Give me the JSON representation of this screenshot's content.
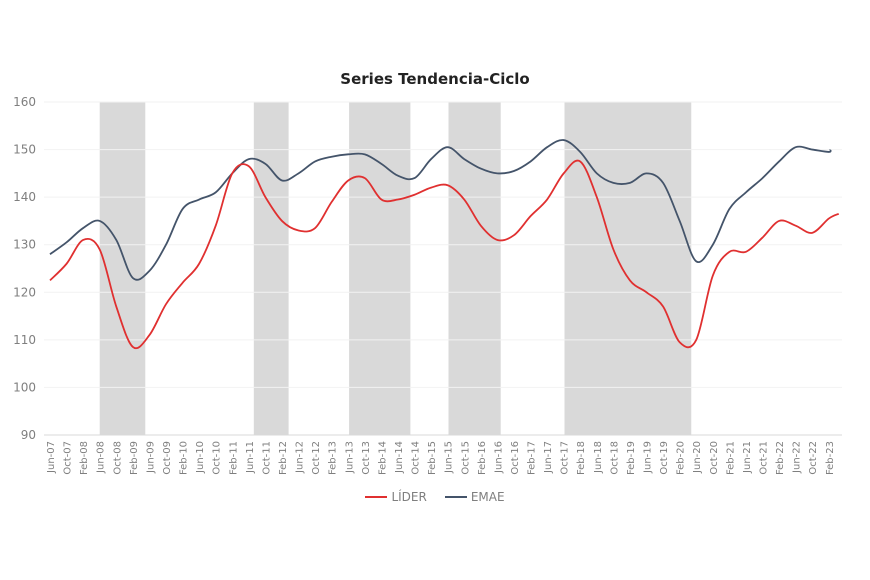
{
  "chart_data": {
    "type": "line",
    "title": "Series Tendencia-Ciclo",
    "xlabel": "",
    "ylabel": "",
    "ylim": [
      90,
      160
    ],
    "yticks": [
      90,
      100,
      110,
      120,
      130,
      140,
      150,
      160
    ],
    "grid": true,
    "legend_position": "bottom",
    "categories": [
      "Jun-07",
      "Oct-07",
      "Feb-08",
      "Jun-08",
      "Oct-08",
      "Feb-09",
      "Jun-09",
      "Oct-09",
      "Feb-10",
      "Jun-10",
      "Oct-10",
      "Feb-11",
      "Jun-11",
      "Oct-11",
      "Feb-12",
      "Jun-12",
      "Oct-12",
      "Feb-13",
      "Jun-13",
      "Oct-13",
      "Feb-14",
      "Jun-14",
      "Oct-14",
      "Feb-15",
      "Jun-15",
      "Oct-15",
      "Feb-16",
      "Jun-16",
      "Oct-16",
      "Feb-17",
      "Jun-17",
      "Oct-17",
      "Feb-18",
      "Jun-18",
      "Oct-18",
      "Feb-19",
      "Jun-19",
      "Oct-19",
      "Feb-20",
      "Jun-20",
      "Oct-20",
      "Feb-21",
      "Jun-21",
      "Oct-21",
      "Feb-22",
      "Jun-22",
      "Oct-22",
      "Feb-23"
    ],
    "series": [
      {
        "name": "LÍDER",
        "color": "#e03030",
        "values": [
          122.5,
          126,
          131,
          129,
          117,
          108.5,
          111,
          117.5,
          122,
          126,
          134,
          145,
          146.5,
          140,
          135,
          133,
          133.5,
          139,
          143.5,
          144,
          139.5,
          139.5,
          140.5,
          142,
          142.5,
          139.5,
          134,
          131,
          132,
          136,
          139.5,
          145,
          147.5,
          140,
          129,
          122.5,
          120,
          117,
          109.5,
          110,
          123.5,
          128.5,
          128.5,
          131.5,
          135,
          134,
          132.5,
          135.5
        ]
      },
      {
        "name": "EMAE",
        "color": "#44546a",
        "values": [
          128,
          130.5,
          133.5,
          135,
          131,
          123,
          124.5,
          130,
          137.5,
          139.5,
          141,
          145,
          148,
          147,
          143.5,
          145,
          147.5,
          148.5,
          149,
          149,
          147,
          144.5,
          144,
          148,
          150.5,
          148,
          146,
          145,
          145.5,
          147.5,
          150.5,
          152,
          149.5,
          145,
          143,
          143,
          145,
          143,
          135,
          126.5,
          130,
          137.5,
          141,
          144,
          147.5,
          150.5,
          150,
          149.5
        ]
      }
    ],
    "shaded_periods": [
      {
        "start": "Jun-08",
        "end": "May-09"
      },
      {
        "start": "Jul-11",
        "end": "Mar-12"
      },
      {
        "start": "Jun-13",
        "end": "Sep-14"
      },
      {
        "start": "Jul-15",
        "end": "Jun-16"
      },
      {
        "start": "Nov-17",
        "end": "Jun-20"
      }
    ],
    "shaded_index_ranges": [
      [
        3,
        5.75
      ],
      [
        12.3,
        14.4
      ],
      [
        18.05,
        21.75
      ],
      [
        24.05,
        27.2
      ],
      [
        31.05,
        38.7
      ]
    ],
    "shade_color": "#d9d9d9"
  },
  "legend": {
    "items": [
      {
        "label": "LÍDER",
        "color": "#e03030"
      },
      {
        "label": "EMAE",
        "color": "#44546a"
      }
    ]
  }
}
